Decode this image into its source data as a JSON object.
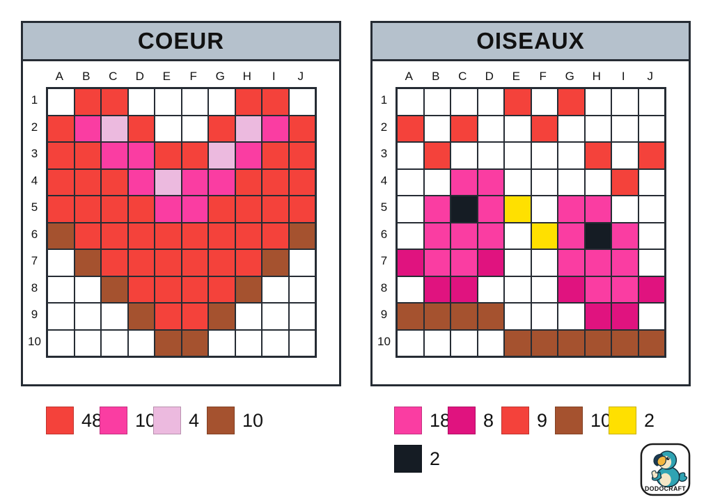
{
  "palette": {
    "W": "#FFFFFF",
    "R": "#F4423B",
    "M": "#FA3DA2",
    "P": "#ECBADF",
    "B": "#A5522F",
    "D": "#E0137F",
    "Y": "#FFE000",
    "K": "#151C24"
  },
  "colors": {
    "header_bg": "#B5C1CC",
    "grid_line": "#262C34"
  },
  "grids": {
    "coeur": {
      "title": "COEUR",
      "columns": [
        "A",
        "B",
        "C",
        "D",
        "E",
        "F",
        "G",
        "H",
        "I",
        "J"
      ],
      "rows": [
        "1",
        "2",
        "3",
        "4",
        "5",
        "6",
        "7",
        "8",
        "9",
        "10"
      ],
      "cells": [
        "WRRWWWWRRW",
        "RMPRWWRPMR",
        "RRMMRRPMRR",
        "RRRMPMMRRR",
        "RRRRMMRRRR",
        "BRRRRRRRRB",
        "WBRRRRRRBW",
        "WWBRRRRBWW",
        "WWWBRRBWWW",
        "WWWWBBWWWW"
      ],
      "legend": [
        {
          "color_key": "R",
          "color_name": "red",
          "count": "48"
        },
        {
          "color_key": "M",
          "color_name": "pink",
          "count": "10"
        },
        {
          "color_key": "P",
          "color_name": "light-pink",
          "count": "4"
        },
        {
          "color_key": "B",
          "color_name": "brown",
          "count": "10"
        }
      ]
    },
    "oiseaux": {
      "title": "OISEAUX",
      "columns": [
        "A",
        "B",
        "C",
        "D",
        "E",
        "F",
        "G",
        "H",
        "I",
        "J"
      ],
      "rows": [
        "1",
        "2",
        "3",
        "4",
        "5",
        "6",
        "7",
        "8",
        "9",
        "10"
      ],
      "cells": [
        "WWWWRWRWWW",
        "RWRWWRWWWW",
        "WRWWWWWRWR",
        "WWMMWWWWRW",
        "WMKMYWMMWW",
        "WMMMWYMKMW",
        "DMMDWWMMMW",
        "WDDWWWDMMD",
        "BBBBWWWDDW",
        "WWWWBBBBBB"
      ],
      "legend": [
        {
          "color_key": "M",
          "color_name": "pink",
          "count": "18"
        },
        {
          "color_key": "D",
          "color_name": "dark-pink",
          "count": "8"
        },
        {
          "color_key": "R",
          "color_name": "red",
          "count": "9"
        },
        {
          "color_key": "B",
          "color_name": "brown",
          "count": "10"
        },
        {
          "color_key": "Y",
          "color_name": "yellow",
          "count": "2"
        },
        {
          "color_key": "K",
          "color_name": "black",
          "count": "2"
        }
      ]
    }
  },
  "logo": {
    "brand": "DODOCRAFT"
  }
}
